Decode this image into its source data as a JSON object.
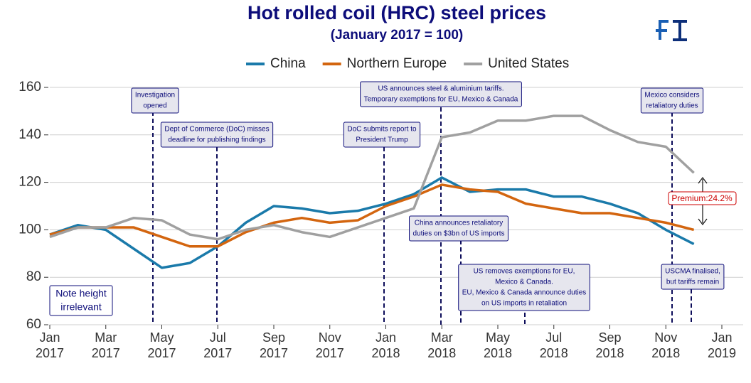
{
  "chart_data": {
    "type": "line",
    "title": "Hot rolled coil (HRC) steel prices",
    "subtitle": "(January 2017 = 100)",
    "x": [
      "2017-01",
      "2017-02",
      "2017-03",
      "2017-04",
      "2017-05",
      "2017-06",
      "2017-07",
      "2017-08",
      "2017-09",
      "2017-10",
      "2017-11",
      "2017-12",
      "2018-01",
      "2018-02",
      "2018-03",
      "2018-04",
      "2018-05",
      "2018-06",
      "2018-07",
      "2018-08",
      "2018-09",
      "2018-10",
      "2018-11",
      "2018-12"
    ],
    "series": [
      {
        "name": "China",
        "color": "#1a7aaa",
        "values": [
          98,
          102,
          100,
          92,
          84,
          86,
          93,
          103,
          110,
          109,
          107,
          108,
          111,
          115,
          122,
          116,
          117,
          117,
          114,
          114,
          111,
          107,
          100,
          94
        ]
      },
      {
        "name": "Northern Europe",
        "color": "#d3650f",
        "values": [
          98,
          101,
          101,
          101,
          97,
          93,
          93,
          99,
          103,
          105,
          103,
          104,
          110,
          114,
          119,
          117,
          116,
          111,
          109,
          107,
          107,
          105,
          103,
          100
        ]
      },
      {
        "name": "United States",
        "color": "#a0a0a0",
        "values": [
          97,
          101,
          101,
          105,
          104,
          98,
          96,
          100,
          102,
          99,
          97,
          101,
          105,
          109,
          139,
          141,
          146,
          146,
          148,
          148,
          142,
          137,
          135,
          124
        ]
      }
    ],
    "xlim": [
      "2017-01",
      "2019-01"
    ],
    "xticks": [
      {
        "value": "2017-01",
        "label": "Jan 2017"
      },
      {
        "value": "2017-03",
        "label": "Mar 2017"
      },
      {
        "value": "2017-05",
        "label": "May 2017"
      },
      {
        "value": "2017-07",
        "label": "Jul 2017"
      },
      {
        "value": "2017-09",
        "label": "Sep 2017"
      },
      {
        "value": "2017-11",
        "label": "Nov 2017"
      },
      {
        "value": "2018-01",
        "label": "Jan 2018"
      },
      {
        "value": "2018-03",
        "label": "Mar 2018"
      },
      {
        "value": "2018-05",
        "label": "May 2018"
      },
      {
        "value": "2018-07",
        "label": "Jul 2018"
      },
      {
        "value": "2018-09",
        "label": "Sep 2018"
      },
      {
        "value": "2018-11",
        "label": "Nov 2018"
      },
      {
        "value": "2019-01",
        "label": "Jan 2019"
      }
    ],
    "ylim": [
      60,
      160
    ],
    "yticks": [
      60,
      80,
      100,
      120,
      140,
      160
    ],
    "grid": true,
    "annotations": [
      [
        "Investigation",
        "opened"
      ],
      [
        "Dept of Commerce (DoC) misses",
        "deadline for publishing findings"
      ],
      [
        "DoC submits report to",
        "President Trump"
      ],
      [
        "US announces steel & aluminium tariffs.",
        "Temporary exemptions for EU, Mexico & Canada"
      ],
      [
        "China announces retaliatory",
        "duties  on $3bn of US imports"
      ],
      [
        "US removes exemptions for EU,",
        "Mexico & Canada.",
        "EU, Mexico & Canada announce duties",
        "on US imports in retaliation"
      ],
      [
        "Mexico considers",
        "retaliatory duties"
      ],
      [
        "USCMA finalised,",
        "but tariffs remain"
      ]
    ],
    "note": [
      "Note height",
      "irrelevant"
    ],
    "premium_label": "Premium:24.2%"
  }
}
